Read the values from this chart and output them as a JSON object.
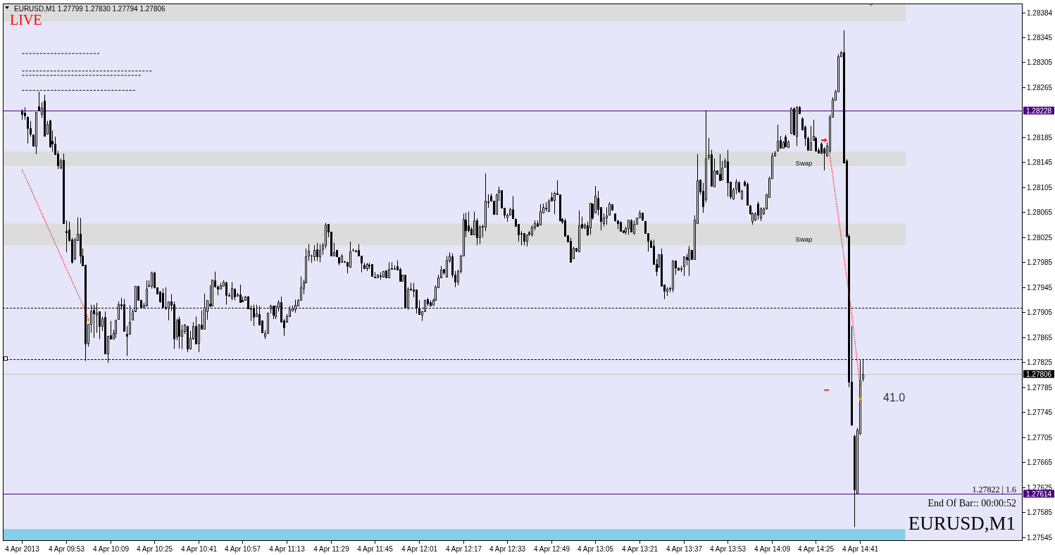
{
  "chart_data": {
    "type": "candlestick",
    "title": "EURUSD,M1 1.27799 1.27830 1.27794 1.27806",
    "color": "#000000",
    "x": [
      "2013-04-04T09:37",
      "2013-04-04T09:38",
      "2013-04-04T09:39",
      "2013-04-04T09:40",
      "2013-04-04T09:41",
      "2013-04-04T09:42",
      "2013-04-04T09:43",
      "2013-04-04T09:44",
      "2013-04-04T09:45",
      "2013-04-04T09:46",
      "2013-04-04T09:47",
      "2013-04-04T09:48",
      "2013-04-04T09:49",
      "2013-04-04T09:50",
      "2013-04-04T09:51",
      "2013-04-04T09:52",
      "2013-04-04T09:53",
      "2013-04-04T09:54",
      "2013-04-04T09:55",
      "2013-04-04T09:56",
      "2013-04-04T09:57",
      "2013-04-04T09:58",
      "2013-04-04T09:59",
      "2013-04-04T10:00",
      "2013-04-04T10:01",
      "2013-04-04T10:02",
      "2013-04-04T10:03",
      "2013-04-04T10:04",
      "2013-04-04T10:05",
      "2013-04-04T10:06",
      "2013-04-04T10:07",
      "2013-04-04T10:08",
      "2013-04-04T10:09",
      "2013-04-04T10:10",
      "2013-04-04T10:11",
      "2013-04-04T10:12",
      "2013-04-04T10:13",
      "2013-04-04T10:14",
      "2013-04-04T10:15",
      "2013-04-04T10:16",
      "2013-04-04T10:17",
      "2013-04-04T10:18",
      "2013-04-04T10:19",
      "2013-04-04T10:20",
      "2013-04-04T10:21",
      "2013-04-04T10:22",
      "2013-04-04T10:23",
      "2013-04-04T10:24",
      "2013-04-04T10:25",
      "2013-04-04T10:26",
      "2013-04-04T10:27",
      "2013-04-04T10:28",
      "2013-04-04T10:29",
      "2013-04-04T10:30",
      "2013-04-04T10:31",
      "2013-04-04T10:32",
      "2013-04-04T10:33",
      "2013-04-04T10:34",
      "2013-04-04T10:35",
      "2013-04-04T10:36",
      "2013-04-04T10:37",
      "2013-04-04T10:38",
      "2013-04-04T10:39",
      "2013-04-04T10:40",
      "2013-04-04T10:41",
      "2013-04-04T10:42",
      "2013-04-04T10:43",
      "2013-04-04T10:44",
      "2013-04-04T10:45",
      "2013-04-04T10:46",
      "2013-04-04T10:47",
      "2013-04-04T10:48",
      "2013-04-04T10:49",
      "2013-04-04T10:50",
      "2013-04-04T10:51",
      "2013-04-04T10:52",
      "2013-04-04T10:53",
      "2013-04-04T10:54",
      "2013-04-04T10:55",
      "2013-04-04T10:56",
      "2013-04-04T10:57",
      "2013-04-04T10:58",
      "2013-04-04T10:59",
      "2013-04-04T11:00",
      "2013-04-04T11:01",
      "2013-04-04T11:02",
      "2013-04-04T11:03",
      "2013-04-04T11:04",
      "2013-04-04T11:05",
      "2013-04-04T11:06",
      "2013-04-04T11:07",
      "2013-04-04T11:08",
      "2013-04-04T11:09",
      "2013-04-04T11:10",
      "2013-04-04T11:11",
      "2013-04-04T11:12",
      "2013-04-04T11:13",
      "2013-04-04T11:14",
      "2013-04-04T11:15",
      "2013-04-04T11:16",
      "2013-04-04T11:17",
      "2013-04-04T11:18",
      "2013-04-04T11:19",
      "2013-04-04T11:20",
      "2013-04-04T11:21",
      "2013-04-04T11:22",
      "2013-04-04T11:23",
      "2013-04-04T11:24",
      "2013-04-04T11:25",
      "2013-04-04T11:26",
      "2013-04-04T11:27",
      "2013-04-04T11:28",
      "2013-04-04T11:29",
      "2013-04-04T11:30",
      "2013-04-04T11:31",
      "2013-04-04T11:32",
      "2013-04-04T11:33",
      "2013-04-04T11:34",
      "2013-04-04T11:35",
      "2013-04-04T11:36",
      "2013-04-04T11:37",
      "2013-04-04T11:38",
      "2013-04-04T11:39",
      "2013-04-04T11:40",
      "2013-04-04T11:41",
      "2013-04-04T11:42",
      "2013-04-04T11:43",
      "2013-04-04T11:44",
      "2013-04-04T11:45",
      "2013-04-04T11:46",
      "2013-04-04T11:47",
      "2013-04-04T11:48",
      "2013-04-04T11:49",
      "2013-04-04T11:50",
      "2013-04-04T11:51",
      "2013-04-04T11:52",
      "2013-04-04T11:53",
      "2013-04-04T11:54",
      "2013-04-04T11:55",
      "2013-04-04T11:56",
      "2013-04-04T11:57",
      "2013-04-04T11:58",
      "2013-04-04T11:59",
      "2013-04-04T12:00",
      "2013-04-04T12:01",
      "2013-04-04T12:02",
      "2013-04-04T12:03",
      "2013-04-04T12:04",
      "2013-04-04T12:05",
      "2013-04-04T12:06",
      "2013-04-04T12:07",
      "2013-04-04T12:08",
      "2013-04-04T12:09",
      "2013-04-04T12:10",
      "2013-04-04T12:11",
      "2013-04-04T12:12",
      "2013-04-04T12:13",
      "2013-04-04T12:14",
      "2013-04-04T12:15",
      "2013-04-04T12:16",
      "2013-04-04T12:17",
      "2013-04-04T12:18",
      "2013-04-04T12:19",
      "2013-04-04T12:20",
      "2013-04-04T12:21",
      "2013-04-04T12:22",
      "2013-04-04T12:23",
      "2013-04-04T12:24",
      "2013-04-04T12:25",
      "2013-04-04T12:26",
      "2013-04-04T12:27",
      "2013-04-04T12:28",
      "2013-04-04T12:29",
      "2013-04-04T12:30",
      "2013-04-04T12:31",
      "2013-04-04T12:32",
      "2013-04-04T12:33",
      "2013-04-04T12:34",
      "2013-04-04T12:35",
      "2013-04-04T12:36",
      "2013-04-04T12:37",
      "2013-04-04T12:38",
      "2013-04-04T12:39",
      "2013-04-04T12:40",
      "2013-04-04T12:41",
      "2013-04-04T12:42",
      "2013-04-04T12:43",
      "2013-04-04T12:44",
      "2013-04-04T12:45",
      "2013-04-04T12:46",
      "2013-04-04T12:47",
      "2013-04-04T12:48",
      "2013-04-04T12:49",
      "2013-04-04T12:50",
      "2013-04-04T12:51",
      "2013-04-04T12:52",
      "2013-04-04T12:53",
      "2013-04-04T12:54",
      "2013-04-04T12:55",
      "2013-04-04T12:56",
      "2013-04-04T12:57",
      "2013-04-04T12:58",
      "2013-04-04T12:59",
      "2013-04-04T13:00",
      "2013-04-04T13:01",
      "2013-04-04T13:02",
      "2013-04-04T13:03",
      "2013-04-04T13:04",
      "2013-04-04T13:05",
      "2013-04-04T13:06",
      "2013-04-04T13:07",
      "2013-04-04T13:08",
      "2013-04-04T13:09",
      "2013-04-04T13:10",
      "2013-04-04T13:11",
      "2013-04-04T13:12",
      "2013-04-04T13:13",
      "2013-04-04T13:14",
      "2013-04-04T13:15",
      "2013-04-04T13:16",
      "2013-04-04T13:17",
      "2013-04-04T13:18",
      "2013-04-04T13:19",
      "2013-04-04T13:20",
      "2013-04-04T13:21",
      "2013-04-04T13:22",
      "2013-04-04T13:23",
      "2013-04-04T13:24",
      "2013-04-04T13:25",
      "2013-04-04T13:26",
      "2013-04-04T13:27",
      "2013-04-04T13:28",
      "2013-04-04T13:29",
      "2013-04-04T13:30",
      "2013-04-04T13:31",
      "2013-04-04T13:32",
      "2013-04-04T13:33",
      "2013-04-04T13:34",
      "2013-04-04T13:35",
      "2013-04-04T13:36",
      "2013-04-04T13:37",
      "2013-04-04T13:38",
      "2013-04-04T13:39",
      "2013-04-04T13:40",
      "2013-04-04T13:41",
      "2013-04-04T13:42",
      "2013-04-04T13:43",
      "2013-04-04T13:44",
      "2013-04-04T13:45",
      "2013-04-04T13:46",
      "2013-04-04T13:47",
      "2013-04-04T13:48",
      "2013-04-04T13:49",
      "2013-04-04T13:50",
      "2013-04-04T13:51",
      "2013-04-04T13:52",
      "2013-04-04T13:53",
      "2013-04-04T13:54",
      "2013-04-04T13:55",
      "2013-04-04T13:56",
      "2013-04-04T13:57",
      "2013-04-04T13:58",
      "2013-04-04T13:59",
      "2013-04-04T14:00",
      "2013-04-04T14:01",
      "2013-04-04T14:02",
      "2013-04-04T14:03",
      "2013-04-04T14:04",
      "2013-04-04T14:05",
      "2013-04-04T14:06",
      "2013-04-04T14:07",
      "2013-04-04T14:08",
      "2013-04-04T14:09",
      "2013-04-04T14:10",
      "2013-04-04T14:11",
      "2013-04-04T14:12",
      "2013-04-04T14:13",
      "2013-04-04T14:14",
      "2013-04-04T14:15",
      "2013-04-04T14:16",
      "2013-04-04T14:17",
      "2013-04-04T14:18",
      "2013-04-04T14:19",
      "2013-04-04T14:20",
      "2013-04-04T14:21",
      "2013-04-04T14:22",
      "2013-04-04T14:23",
      "2013-04-04T14:24",
      "2013-04-04T14:25",
      "2013-04-04T14:26",
      "2013-04-04T14:27",
      "2013-04-04T14:28",
      "2013-04-04T14:29",
      "2013-04-04T14:30",
      "2013-04-04T14:31",
      "2013-04-04T14:32",
      "2013-04-04T14:33",
      "2013-04-04T14:34",
      "2013-04-04T14:35",
      "2013-04-04T14:36",
      "2013-04-04T14:37",
      "2013-04-04T14:38",
      "2013-04-04T14:39",
      "2013-04-04T14:40",
      "2013-04-04T14:41",
      "2013-04-04T14:42"
    ],
    "ohlc": [
      [
        1.28226,
        1.2823,
        1.28213,
        1.28222
      ],
      [
        1.28224,
        1.28233,
        1.28213,
        1.2822
      ],
      [
        1.28218,
        1.28218,
        1.28175,
        1.28199
      ],
      [
        1.28199,
        1.28211,
        1.28186,
        1.2819
      ],
      [
        1.28189,
        1.28189,
        1.2817,
        1.28171
      ],
      [
        1.28171,
        1.28225,
        1.28158,
        1.28225
      ],
      [
        1.28234,
        1.28258,
        1.28228,
        1.28228
      ],
      [
        1.28222,
        1.28241,
        1.28216,
        1.28232
      ],
      [
        1.28243,
        1.28253,
        1.28187,
        1.28187
      ],
      [
        1.2819,
        1.28211,
        1.2819,
        1.28206
      ],
      [
        1.28212,
        1.28213,
        1.28168,
        1.2817
      ],
      [
        1.28179,
        1.28196,
        1.28162,
        1.28175
      ],
      [
        1.28175,
        1.28186,
        1.28158,
        1.28158
      ],
      [
        1.28159,
        1.28163,
        1.28134,
        1.2814
      ],
      [
        1.28136,
        1.28151,
        1.28134,
        1.28148
      ],
      [
        1.28149,
        1.28159,
        1.28047,
        1.28047
      ],
      [
        1.28035,
        1.28052,
        1.28001,
        1.28033
      ],
      [
        1.28037,
        1.2805,
        1.28018,
        1.2802
      ],
      [
        1.28021,
        1.28024,
        1.27983,
        1.27985
      ],
      [
        1.27991,
        1.28024,
        1.27988,
        1.28021
      ],
      [
        1.2802,
        1.28057,
        1.2802,
        1.2803
      ],
      [
        1.2803,
        1.28056,
        1.27983,
        1.27996
      ],
      [
        1.27996,
        1.28007,
        1.2798,
        1.2798
      ],
      [
        1.27981,
        1.27981,
        1.27827,
        1.27855
      ],
      [
        1.27856,
        1.27886,
        1.2785,
        1.27886
      ],
      [
        1.27886,
        1.27917,
        1.27872,
        1.27907
      ],
      [
        1.27909,
        1.27917,
        1.27864,
        1.27903
      ],
      [
        1.27901,
        1.2792,
        1.27872,
        1.27904
      ],
      [
        1.27906,
        1.27906,
        1.27862,
        1.27883
      ],
      [
        1.27883,
        1.27898,
        1.27875,
        1.27895
      ],
      [
        1.27897,
        1.27906,
        1.27839,
        1.27839
      ],
      [
        1.27839,
        1.27867,
        1.27824,
        1.27867
      ],
      [
        1.27868,
        1.27891,
        1.27863,
        1.27863
      ],
      [
        1.27863,
        1.27877,
        1.27862,
        1.27872
      ],
      [
        1.27872,
        1.27893,
        1.27864,
        1.27893
      ],
      [
        1.27894,
        1.27922,
        1.27894,
        1.27918
      ],
      [
        1.27918,
        1.27928,
        1.27909,
        1.27916
      ],
      [
        1.27918,
        1.27926,
        1.27875,
        1.27875
      ],
      [
        1.2787,
        1.27883,
        1.27835,
        1.27867
      ],
      [
        1.2787,
        1.27916,
        1.2787,
        1.2789
      ],
      [
        1.27893,
        1.2791,
        1.27893,
        1.27907
      ],
      [
        1.27907,
        1.27947,
        1.27907,
        1.27947
      ],
      [
        1.27947,
        1.27947,
        1.27924,
        1.27924
      ],
      [
        1.27925,
        1.27925,
        1.27912,
        1.27912
      ],
      [
        1.27912,
        1.2792,
        1.27912,
        1.27917
      ],
      [
        1.27916,
        1.27956,
        1.27916,
        1.27942
      ],
      [
        1.27947,
        1.27956,
        1.27945,
        1.27948
      ],
      [
        1.27947,
        1.2797,
        1.27943,
        1.27969
      ],
      [
        1.27969,
        1.2797,
        1.27943,
        1.27945
      ],
      [
        1.27945,
        1.27945,
        1.27934,
        1.27935
      ],
      [
        1.27938,
        1.27939,
        1.2792,
        1.27922
      ],
      [
        1.27936,
        1.27943,
        1.27912,
        1.27913
      ],
      [
        1.27913,
        1.27945,
        1.27909,
        1.27911
      ],
      [
        1.27912,
        1.27922,
        1.27892,
        1.27922
      ],
      [
        1.27922,
        1.27934,
        1.27907,
        1.27917
      ],
      [
        1.27918,
        1.27922,
        1.27846,
        1.27863
      ],
      [
        1.27866,
        1.27895,
        1.2786,
        1.27892
      ],
      [
        1.27894,
        1.27898,
        1.27847,
        1.27867
      ],
      [
        1.27867,
        1.27885,
        1.27846,
        1.27876
      ],
      [
        1.27875,
        1.27886,
        1.2787,
        1.27885
      ],
      [
        1.27883,
        1.27883,
        1.27841,
        1.27847
      ],
      [
        1.27847,
        1.27875,
        1.27845,
        1.27864
      ],
      [
        1.27863,
        1.27889,
        1.27863,
        1.27883
      ],
      [
        1.27883,
        1.27898,
        1.27855,
        1.27855
      ],
      [
        1.27856,
        1.27886,
        1.27841,
        1.27885
      ],
      [
        1.27885,
        1.27908,
        1.27878,
        1.27878
      ],
      [
        1.27878,
        1.27935,
        1.27878,
        1.27913
      ],
      [
        1.27907,
        1.27924,
        1.27893,
        1.27924
      ],
      [
        1.27919,
        1.27948,
        1.27913,
        1.27916
      ],
      [
        1.27915,
        1.27957,
        1.27915,
        1.27957
      ],
      [
        1.27956,
        1.2797,
        1.27945,
        1.27946
      ],
      [
        1.27946,
        1.27948,
        1.27932,
        1.27942
      ],
      [
        1.27942,
        1.27952,
        1.27942,
        1.27948
      ],
      [
        1.27947,
        1.27956,
        1.27947,
        1.27954
      ],
      [
        1.27953,
        1.27954,
        1.27917,
        1.27932
      ],
      [
        1.27932,
        1.27936,
        1.2793,
        1.27931
      ],
      [
        1.27928,
        1.27953,
        1.27924,
        1.27944
      ],
      [
        1.27943,
        1.27943,
        1.27924,
        1.2793
      ],
      [
        1.27931,
        1.27936,
        1.2793,
        1.27934
      ],
      [
        1.27934,
        1.27949,
        1.27921,
        1.27921
      ],
      [
        1.27925,
        1.2793,
        1.27921,
        1.27922
      ],
      [
        1.27924,
        1.27931,
        1.27924,
        1.2793
      ],
      [
        1.2793,
        1.27931,
        1.27911,
        1.27911
      ],
      [
        1.2791,
        1.27916,
        1.27891,
        1.27912
      ],
      [
        1.27911,
        1.27917,
        1.27883,
        1.27897
      ],
      [
        1.27899,
        1.27917,
        1.27898,
        1.27903
      ],
      [
        1.27902,
        1.27915,
        1.27884,
        1.27885
      ],
      [
        1.27892,
        1.27892,
        1.27872,
        1.27873
      ],
      [
        1.27867,
        1.27876,
        1.27862,
        1.27872
      ],
      [
        1.27871,
        1.27904,
        1.27871,
        1.27904
      ],
      [
        1.27911,
        1.27917,
        1.27903,
        1.27915
      ],
      [
        1.27915,
        1.27915,
        1.27894,
        1.27901
      ],
      [
        1.27899,
        1.27915,
        1.27894,
        1.27915
      ],
      [
        1.27912,
        1.27924,
        1.27906,
        1.27921
      ],
      [
        1.27921,
        1.2793,
        1.2789,
        1.2789
      ],
      [
        1.27892,
        1.27894,
        1.27867,
        1.2788
      ],
      [
        1.2789,
        1.27902,
        1.2789,
        1.27899
      ],
      [
        1.27899,
        1.27915,
        1.27899,
        1.2791
      ],
      [
        1.27908,
        1.27916,
        1.27907,
        1.27912
      ],
      [
        1.2791,
        1.27925,
        1.27904,
        1.27917
      ],
      [
        1.27915,
        1.27926,
        1.27915,
        1.27925
      ],
      [
        1.27924,
        1.27962,
        1.27924,
        1.27945
      ],
      [
        1.27944,
        1.27957,
        1.27934,
        1.27953
      ],
      [
        1.27953,
        1.28007,
        1.27953,
        1.27994
      ],
      [
        1.27995,
        1.28014,
        1.27987,
        1.28003
      ],
      [
        1.27995,
        1.27997,
        1.27984,
        1.27996
      ],
      [
        1.27994,
        1.28012,
        1.27987,
        1.28005
      ],
      [
        1.28006,
        1.28016,
        1.27987,
        1.27994
      ],
      [
        1.27994,
        1.28014,
        1.27985,
        1.28005
      ],
      [
        1.28006,
        1.28016,
        1.27997,
        1.28012
      ],
      [
        1.28012,
        1.28048,
        1.28007,
        1.28045
      ],
      [
        1.28046,
        1.28046,
        1.28025,
        1.28034
      ],
      [
        1.28034,
        1.28034,
        1.27995,
        1.27995
      ],
      [
        1.27995,
        1.28016,
        1.27995,
        1.28001
      ],
      [
        1.28005,
        1.28005,
        1.27994,
        1.27994
      ],
      [
        1.27993,
        1.27993,
        1.2798,
        1.27984
      ],
      [
        1.27985,
        1.27998,
        1.27984,
        1.27995
      ],
      [
        1.27985,
        1.27987,
        1.27984,
        1.27986
      ],
      [
        1.27985,
        1.27985,
        1.27967,
        1.27979
      ],
      [
        1.27978,
        1.28018,
        1.27976,
        1.28002
      ],
      [
        1.28005,
        1.28007,
        1.28002,
        1.28004
      ],
      [
        1.28003,
        1.28005,
        1.28001,
        1.28002
      ],
      [
        1.28005,
        1.28014,
        1.27995,
        1.27995
      ],
      [
        1.27995,
        1.27995,
        1.27969,
        1.27984
      ],
      [
        1.27981,
        1.27984,
        1.27974,
        1.27975
      ],
      [
        1.27975,
        1.27984,
        1.27971,
        1.27982
      ],
      [
        1.27981,
        1.27984,
        1.27974,
        1.2798
      ],
      [
        1.27982,
        1.27982,
        1.27963,
        1.27963
      ],
      [
        1.27962,
        1.27969,
        1.2796,
        1.27961
      ],
      [
        1.27961,
        1.27966,
        1.2796,
        1.27965
      ],
      [
        1.27964,
        1.27969,
        1.27957,
        1.27963
      ],
      [
        1.27962,
        1.27971,
        1.27962,
        1.27971
      ],
      [
        1.27972,
        1.27972,
        1.2796,
        1.2796
      ],
      [
        1.2796,
        1.27985,
        1.2796,
        1.27974
      ],
      [
        1.27975,
        1.27985,
        1.27973,
        1.27974
      ],
      [
        1.27974,
        1.2798,
        1.27973,
        1.27975
      ],
      [
        1.27979,
        1.27988,
        1.27973,
        1.27973
      ],
      [
        1.27974,
        1.27976,
        1.27955,
        1.27955
      ],
      [
        1.27955,
        1.27965,
        1.27955,
        1.27965
      ],
      [
        1.27965,
        1.27965,
        1.27912,
        1.27912
      ],
      [
        1.27912,
        1.27945,
        1.27909,
        1.27943
      ],
      [
        1.27942,
        1.27952,
        1.27939,
        1.27941
      ],
      [
        1.27941,
        1.27952,
        1.27929,
        1.27939
      ],
      [
        1.27941,
        1.27941,
        1.27903,
        1.27912
      ],
      [
        1.27912,
        1.27924,
        1.27902,
        1.27902
      ],
      [
        1.27901,
        1.27907,
        1.27891,
        1.27907
      ],
      [
        1.27906,
        1.27925,
        1.27906,
        1.27925
      ],
      [
        1.27926,
        1.27928,
        1.27915,
        1.27919
      ],
      [
        1.27921,
        1.27924,
        1.27915,
        1.27916
      ],
      [
        1.27917,
        1.27927,
        1.27916,
        1.27925
      ],
      [
        1.27925,
        1.27948,
        1.27925,
        1.27946
      ],
      [
        1.27945,
        1.27965,
        1.27945,
        1.27961
      ],
      [
        1.27961,
        1.27979,
        1.27961,
        1.27973
      ],
      [
        1.27974,
        1.27974,
        1.27965,
        1.27969
      ],
      [
        1.27962,
        1.27995,
        1.27962,
        1.27989
      ],
      [
        1.27988,
        1.28001,
        1.27984,
        1.27995
      ],
      [
        1.27994,
        1.27999,
        1.2796,
        1.27965
      ],
      [
        1.27965,
        1.27971,
        1.27945,
        1.27954
      ],
      [
        1.27954,
        1.27973,
        1.27948,
        1.27971
      ],
      [
        1.27971,
        1.27997,
        1.27967,
        1.27995
      ],
      [
        1.27995,
        1.28063,
        1.27995,
        1.28054
      ],
      [
        1.28053,
        1.28064,
        1.28025,
        1.28036
      ],
      [
        1.28044,
        1.28066,
        1.28033,
        1.28036
      ],
      [
        1.28038,
        1.28041,
        1.28029,
        1.28029
      ],
      [
        1.28029,
        1.28066,
        1.28029,
        1.28052
      ],
      [
        1.28052,
        1.28055,
        1.28012,
        1.28025
      ],
      [
        1.28025,
        1.28044,
        1.28014,
        1.28042
      ],
      [
        1.28043,
        1.28045,
        1.28025,
        1.28042
      ],
      [
        1.28042,
        1.28127,
        1.28035,
        1.28083
      ],
      [
        1.28082,
        1.28094,
        1.28072,
        1.28081
      ],
      [
        1.28091,
        1.28095,
        1.28083,
        1.28083
      ],
      [
        1.28083,
        1.28083,
        1.28061,
        1.28062
      ],
      [
        1.28062,
        1.28095,
        1.28061,
        1.28093
      ],
      [
        1.28097,
        1.28106,
        1.28083,
        1.281
      ],
      [
        1.281,
        1.281,
        1.28072,
        1.28072
      ],
      [
        1.28072,
        1.28072,
        1.28055,
        1.28061
      ],
      [
        1.28057,
        1.28063,
        1.2805,
        1.28061
      ],
      [
        1.28061,
        1.28072,
        1.28061,
        1.2807
      ],
      [
        1.2807,
        1.28091,
        1.28055,
        1.28055
      ],
      [
        1.28054,
        1.28055,
        1.28043,
        1.28043
      ],
      [
        1.28046,
        1.28046,
        1.28018,
        1.28029
      ],
      [
        1.2803,
        1.28035,
        1.28012,
        1.28031
      ],
      [
        1.28031,
        1.28031,
        1.28012,
        1.28019
      ],
      [
        1.28019,
        1.28029,
        1.2801,
        1.28029
      ],
      [
        1.28033,
        1.28035,
        1.28027,
        1.2803
      ],
      [
        1.28029,
        1.28044,
        1.28026,
        1.28042
      ],
      [
        1.28041,
        1.28052,
        1.28036,
        1.28047
      ],
      [
        1.28047,
        1.28052,
        1.28043,
        1.28043
      ],
      [
        1.28045,
        1.28078,
        1.28045,
        1.28067
      ],
      [
        1.28064,
        1.28079,
        1.28064,
        1.28073
      ],
      [
        1.28072,
        1.28081,
        1.28066,
        1.28071
      ],
      [
        1.28066,
        1.28086,
        1.28066,
        1.28083
      ],
      [
        1.28089,
        1.28097,
        1.28083,
        1.28083
      ],
      [
        1.28085,
        1.28098,
        1.28062,
        1.28096
      ],
      [
        1.28096,
        1.28116,
        1.28093,
        1.28093
      ],
      [
        1.28093,
        1.28093,
        1.28052,
        1.28052
      ],
      [
        1.28054,
        1.28056,
        1.28046,
        1.2805
      ],
      [
        1.28052,
        1.28055,
        1.28027,
        1.28027
      ],
      [
        1.28028,
        1.28028,
        1.28018,
        1.28018
      ],
      [
        1.28019,
        1.28024,
        1.27985,
        1.27985
      ],
      [
        1.27991,
        1.2801,
        1.27991,
        1.28008
      ],
      [
        1.28008,
        1.28008,
        1.28001,
        1.28003
      ],
      [
        1.28002,
        1.28068,
        1.28002,
        1.28044
      ],
      [
        1.28046,
        1.28058,
        1.28038,
        1.28041
      ],
      [
        1.28041,
        1.28047,
        1.28038,
        1.28045
      ],
      [
        1.28044,
        1.2805,
        1.28027,
        1.28029
      ],
      [
        1.28041,
        1.2808,
        1.28029,
        1.2808
      ],
      [
        1.28079,
        1.28079,
        1.28053,
        1.28056
      ],
      [
        1.28064,
        1.28107,
        1.28064,
        1.28091
      ],
      [
        1.28088,
        1.28099,
        1.2806,
        1.2807
      ],
      [
        1.28073,
        1.28073,
        1.28036,
        1.28051
      ],
      [
        1.28047,
        1.28063,
        1.28042,
        1.28056
      ],
      [
        1.28056,
        1.28073,
        1.28045,
        1.2806
      ],
      [
        1.28061,
        1.28081,
        1.28061,
        1.28079
      ],
      [
        1.28078,
        1.28078,
        1.28069,
        1.28069
      ],
      [
        1.28063,
        1.28063,
        1.2805,
        1.28052
      ],
      [
        1.28052,
        1.28052,
        1.28038,
        1.28047
      ],
      [
        1.2805,
        1.2805,
        1.28034,
        1.28035
      ],
      [
        1.28036,
        1.28036,
        1.28032,
        1.28033
      ],
      [
        1.28034,
        1.28042,
        1.28029,
        1.2804
      ],
      [
        1.2804,
        1.28053,
        1.28029,
        1.28053
      ],
      [
        1.28052,
        1.28054,
        1.28034,
        1.28034
      ],
      [
        1.28032,
        1.28052,
        1.28029,
        1.28046
      ],
      [
        1.28046,
        1.28056,
        1.28045,
        1.28056
      ],
      [
        1.28056,
        1.28068,
        1.28056,
        1.28064
      ],
      [
        1.28064,
        1.28064,
        1.28051,
        1.28053
      ],
      [
        1.28051,
        1.28051,
        1.28031,
        1.28031
      ],
      [
        1.28031,
        1.28031,
        1.28002,
        1.28019
      ],
      [
        1.28019,
        1.28021,
        1.28009,
        1.28009
      ],
      [
        1.28011,
        1.28021,
        1.27982,
        1.27982
      ],
      [
        1.27982,
        1.2799,
        1.27963,
        1.27971
      ],
      [
        1.27978,
        1.27998,
        1.27978,
        1.27998
      ],
      [
        1.27998,
        1.28007,
        1.27947,
        1.27947
      ],
      [
        1.27949,
        1.27949,
        1.27926,
        1.27939
      ],
      [
        1.27939,
        1.27945,
        1.27931,
        1.27943
      ],
      [
        1.27942,
        1.27946,
        1.27937,
        1.27944
      ],
      [
        1.27943,
        1.27988,
        1.27937,
        1.27988
      ],
      [
        1.27988,
        1.27988,
        1.27965,
        1.27976
      ],
      [
        1.27976,
        1.27976,
        1.27971,
        1.27973
      ],
      [
        1.27974,
        1.27979,
        1.27969,
        1.27975
      ],
      [
        1.27979,
        1.27994,
        1.27963,
        1.27994
      ],
      [
        1.27993,
        1.27998,
        1.2798,
        1.2799
      ],
      [
        1.27989,
        1.28011,
        1.27963,
        1.28006
      ],
      [
        1.28005,
        1.28005,
        1.2799,
        1.2799
      ],
      [
        1.2799,
        1.2806,
        1.2799,
        1.28053
      ],
      [
        1.28047,
        1.28158,
        1.28047,
        1.28116
      ],
      [
        1.28117,
        1.28117,
        1.28093,
        1.28098
      ],
      [
        1.28099,
        1.28112,
        1.28064,
        1.28074
      ],
      [
        1.28086,
        1.28228,
        1.28081,
        1.28151
      ],
      [
        1.28153,
        1.28184,
        1.28149,
        1.28157
      ],
      [
        1.28158,
        1.28165,
        1.28106,
        1.28107
      ],
      [
        1.28106,
        1.28151,
        1.28105,
        1.28132
      ],
      [
        1.28132,
        1.28132,
        1.28126,
        1.28126
      ],
      [
        1.28126,
        1.28158,
        1.28116,
        1.28116
      ],
      [
        1.28117,
        1.28147,
        1.28117,
        1.28136
      ],
      [
        1.28137,
        1.28151,
        1.28137,
        1.28148
      ],
      [
        1.28146,
        1.28165,
        1.2809,
        1.28113
      ],
      [
        1.28114,
        1.28114,
        1.28086,
        1.2809
      ],
      [
        1.28087,
        1.28104,
        1.28085,
        1.28101
      ],
      [
        1.28103,
        1.28118,
        1.28094,
        1.28114
      ],
      [
        1.28113,
        1.28115,
        1.28096,
        1.28098
      ],
      [
        1.28087,
        1.28101,
        1.28085,
        1.28099
      ],
      [
        1.28114,
        1.28116,
        1.28106,
        1.28108
      ],
      [
        1.2811,
        1.28113,
        1.28076,
        1.28077
      ],
      [
        1.28075,
        1.28077,
        1.28061,
        1.28063
      ],
      [
        1.28051,
        1.28065,
        1.28045,
        1.28063
      ],
      [
        1.28053,
        1.28065,
        1.28051,
        1.28063
      ],
      [
        1.28079,
        1.28082,
        1.28053,
        1.28061
      ],
      [
        1.28056,
        1.28073,
        1.28051,
        1.28071
      ],
      [
        1.28063,
        1.28073,
        1.28061,
        1.28071
      ],
      [
        1.28071,
        1.28095,
        1.28069,
        1.28093
      ],
      [
        1.28089,
        1.28122,
        1.28088,
        1.28119
      ],
      [
        1.28119,
        1.2816,
        1.28118,
        1.28155
      ],
      [
        1.28155,
        1.28163,
        1.28154,
        1.2816
      ],
      [
        1.28163,
        1.28205,
        1.28162,
        1.28179
      ],
      [
        1.2818,
        1.28187,
        1.28167,
        1.28168
      ],
      [
        1.28168,
        1.28179,
        1.28167,
        1.28177
      ],
      [
        1.28186,
        1.28189,
        1.28169,
        1.2817
      ],
      [
        1.28169,
        1.2818,
        1.28168,
        1.28178
      ],
      [
        1.28192,
        1.28233,
        1.2819,
        1.28231
      ],
      [
        1.28231,
        1.28233,
        1.28188,
        1.28189
      ],
      [
        1.28187,
        1.28235,
        1.28171,
        1.28233
      ],
      [
        1.28233,
        1.28235,
        1.28222,
        1.28223
      ],
      [
        1.28215,
        1.28217,
        1.28196,
        1.28197
      ],
      [
        1.28202,
        1.28204,
        1.28171,
        1.28184
      ],
      [
        1.28184,
        1.28186,
        1.28164,
        1.28165
      ],
      [
        1.28165,
        1.28203,
        1.28164,
        1.28177
      ],
      [
        1.2818,
        1.28213,
        1.28179,
        1.28187
      ],
      [
        1.28184,
        1.28186,
        1.28162,
        1.28163
      ],
      [
        1.28165,
        1.28168,
        1.28159,
        1.2816
      ],
      [
        1.28175,
        1.28177,
        1.28158,
        1.2816
      ],
      [
        1.28167,
        1.28169,
        1.28132,
        1.2816
      ],
      [
        1.28155,
        1.28176,
        1.28154,
        1.28171
      ],
      [
        1.28163,
        1.28221,
        1.2816,
        1.28218
      ],
      [
        1.28218,
        1.28249,
        1.28217,
        1.28246
      ],
      [
        1.28245,
        1.28261,
        1.28244,
        1.28258
      ],
      [
        1.28258,
        1.28318,
        1.28257,
        1.28315
      ],
      [
        1.28315,
        1.28323,
        1.28314,
        1.28321
      ],
      [
        1.28321,
        1.28356,
        1.28143,
        1.28144
      ],
      [
        1.28148,
        1.2815,
        1.28024,
        1.28027
      ],
      [
        1.28027,
        1.2803,
        1.27785,
        1.27794
      ],
      [
        1.27794,
        1.27883,
        1.27723,
        1.27725
      ],
      [
        1.27707,
        1.27709,
        1.27561,
        1.27621
      ],
      [
        1.27616,
        1.2772,
        1.27614,
        1.27717
      ],
      [
        1.27711,
        1.27828,
        1.27708,
        1.27796
      ],
      [
        1.27799,
        1.2783,
        1.27794,
        1.27806
      ]
    ],
    "series": [
      {
        "type": "line",
        "x": [
          "2013-04-04T09:37",
          "2013-04-04T10:05"
        ],
        "values": [
          1.28319,
          1.28319
        ],
        "color": "#000000",
        "line_style": "dashed"
      },
      {
        "type": "line",
        "x": [
          "2013-04-04T09:37",
          "2013-04-04T10:24"
        ],
        "values": [
          1.28291,
          1.28291
        ],
        "color": "#000000",
        "line_style": "dashed"
      },
      {
        "type": "line",
        "x": [
          "2013-04-04T09:37",
          "2013-04-04T10:20"
        ],
        "values": [
          1.28284,
          1.28284
        ],
        "color": "#000000",
        "line_style": "dashed"
      },
      {
        "type": "line",
        "x": [
          "2013-04-04T09:37",
          "2013-04-04T10:18"
        ],
        "values": [
          1.2826,
          1.2826
        ],
        "color": "#000000",
        "line_style": "dashed"
      },
      {
        "type": "line",
        "x": [
          "2013-04-04T09:37",
          "2013-04-04T10:00",
          "2013-04-04T10:01"
        ],
        "values": [
          1.28133,
          1.27907,
          1.27894
        ],
        "color": "#ff0000",
        "line_style": "dotted"
      },
      {
        "type": "line",
        "x": [
          "2013-04-04T14:30",
          "2013-04-04T14:38",
          "2013-04-04T14:41"
        ],
        "values": [
          1.28159,
          1.27903,
          1.27787
        ],
        "color": "#ff0000",
        "line_style": "dotted"
      },
      {
        "type": "scatter",
        "x": [
          "2013-04-04T10:01",
          "2013-04-04T14:41"
        ],
        "values": [
          1.27893,
          1.27766
        ],
        "color": "#ffa500",
        "marker": "diamond"
      }
    ],
    "xlim": [
      "2013-04-04T09:30",
      "2013-04-04T15:40"
    ],
    "xticks": [
      {
        "value": "2013-04-04T09:37",
        "label": "4 Apr 2013"
      },
      {
        "value": "2013-04-04T09:53",
        "label": "4 Apr 09:53"
      },
      {
        "value": "2013-04-04T10:09",
        "label": "4 Apr 10:09"
      },
      {
        "value": "2013-04-04T10:25",
        "label": "4 Apr 10:25"
      },
      {
        "value": "2013-04-04T10:41",
        "label": "4 Apr 10:41"
      },
      {
        "value": "2013-04-04T10:57",
        "label": "4 Apr 10:57"
      },
      {
        "value": "2013-04-04T11:13",
        "label": "4 Apr 11:13"
      },
      {
        "value": "2013-04-04T11:29",
        "label": "4 Apr 11:29"
      },
      {
        "value": "2013-04-04T11:45",
        "label": "4 Apr 11:45"
      },
      {
        "value": "2013-04-04T12:01",
        "label": "4 Apr 12:01"
      },
      {
        "value": "2013-04-04T12:17",
        "label": "4 Apr 12:17"
      },
      {
        "value": "2013-04-04T12:33",
        "label": "4 Apr 12:33"
      },
      {
        "value": "2013-04-04T12:49",
        "label": "4 Apr 12:49"
      },
      {
        "value": "2013-04-04T13:05",
        "label": "4 Apr 13:05"
      },
      {
        "value": "2013-04-04T13:21",
        "label": "4 Apr 13:21"
      },
      {
        "value": "2013-04-04T13:37",
        "label": "4 Apr 13:37"
      },
      {
        "value": "2013-04-04T13:53",
        "label": "4 Apr 13:53"
      },
      {
        "value": "2013-04-04T14:09",
        "label": "4 Apr 14:09"
      },
      {
        "value": "2013-04-04T14:25",
        "label": "4 Apr 14:25"
      },
      {
        "value": "2013-04-04T14:41",
        "label": "4 Apr 14:41"
      }
    ],
    "ylim": [
      1.27539,
      1.28399
    ],
    "yticks": [
      1.28384,
      1.28345,
      1.28305,
      1.28265,
      1.28185,
      1.28145,
      1.28105,
      1.28065,
      1.28025,
      1.27985,
      1.27945,
      1.27905,
      1.27865,
      1.27825,
      1.27785,
      1.27745,
      1.27705,
      1.27665,
      1.27625,
      1.27585,
      1.27545
    ],
    "ref_lines": [
      {
        "axis": "y",
        "value": 1.28228,
        "label": "1.28228",
        "color": "#4b0082"
      },
      {
        "axis": "y",
        "value": 1.27614,
        "label": "1.27614",
        "color": "#4b0082"
      },
      {
        "axis": "y",
        "value": 1.27806,
        "label": "1.27806",
        "color": "#c0c0c0"
      },
      {
        "axis": "y",
        "value": 1.27912,
        "color": "#000000",
        "line_style": "dashed"
      },
      {
        "axis": "y",
        "value": 1.2783,
        "color": "#000000",
        "line_style": "dashed"
      }
    ],
    "bands": [
      {
        "axis": "y",
        "from": 1.2837,
        "to": 1.28399,
        "color": "#dcdcdc"
      },
      {
        "axis": "y",
        "from": 1.28139,
        "to": 1.28162,
        "label": "Swap",
        "color": "#dcdcdc"
      },
      {
        "axis": "y",
        "from": 1.28012,
        "to": 1.28047,
        "label": "Swap",
        "color": "#dcdcdc"
      },
      {
        "axis": "y",
        "from": 1.27539,
        "to": 1.27558,
        "color": "#87ceeb"
      }
    ],
    "annotations": [
      "LIVE",
      "41.0",
      "1.27822 | 1.6",
      "End Of Bar:: 00:00:52",
      "EURUSD,M1"
    ]
  }
}
